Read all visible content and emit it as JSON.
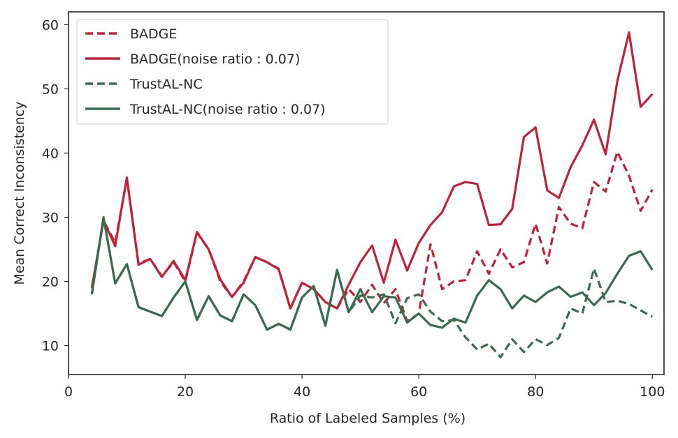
{
  "chart_data": {
    "type": "line",
    "title": "",
    "xlabel": "Ratio of Labeled Samples (%)",
    "ylabel": "Mean Correct Inconsistency",
    "xlim": [
      0,
      102
    ],
    "ylim": [
      5.5,
      62
    ],
    "xticks": [
      0,
      20,
      40,
      60,
      80,
      100
    ],
    "yticks": [
      10,
      20,
      30,
      40,
      50,
      60
    ],
    "grid": false,
    "legend_position": "top-left",
    "series": [
      {
        "name": "BADGE",
        "color": "#c0223a",
        "style": "dashed",
        "points": [
          [
            4,
            19
          ],
          [
            6,
            29.5
          ],
          [
            8,
            26
          ],
          [
            10,
            36
          ],
          [
            12,
            22.8
          ],
          [
            14,
            23.5
          ],
          [
            16,
            20.8
          ],
          [
            18,
            23
          ],
          [
            20,
            20
          ],
          [
            22,
            27.6
          ],
          [
            24,
            25
          ],
          [
            26,
            20
          ],
          [
            28,
            17.6
          ],
          [
            30,
            20
          ],
          [
            32,
            23.8
          ],
          [
            34,
            23
          ],
          [
            36,
            22
          ],
          [
            38,
            15.8
          ],
          [
            40,
            19.8
          ],
          [
            42,
            18.8
          ],
          [
            44,
            16.8
          ],
          [
            46,
            15.8
          ],
          [
            48,
            18.8
          ],
          [
            50,
            16.8
          ],
          [
            52,
            19.5
          ],
          [
            54,
            16.6
          ],
          [
            56,
            18.8
          ],
          [
            58,
            13.8
          ],
          [
            60,
            15
          ],
          [
            62,
            25.8
          ],
          [
            64,
            18.8
          ],
          [
            66,
            20
          ],
          [
            68,
            20.2
          ],
          [
            70,
            24.7
          ],
          [
            72,
            21.2
          ],
          [
            74,
            25
          ],
          [
            76,
            22.2
          ],
          [
            78,
            23
          ],
          [
            80,
            29
          ],
          [
            82,
            22.8
          ],
          [
            84,
            31.6
          ],
          [
            86,
            29
          ],
          [
            88,
            28.3
          ],
          [
            90,
            35.5
          ],
          [
            92,
            34
          ],
          [
            94,
            40.2
          ],
          [
            96,
            36.5
          ],
          [
            98,
            31
          ],
          [
            100,
            34.3
          ]
        ]
      },
      {
        "name": "BADGE(noise ratio : 0.07)",
        "color": "#c0223a",
        "style": "solid",
        "points": [
          [
            4,
            19
          ],
          [
            6,
            29.5
          ],
          [
            8,
            25.5
          ],
          [
            10,
            36.2
          ],
          [
            12,
            22.6
          ],
          [
            14,
            23.5
          ],
          [
            16,
            20.7
          ],
          [
            18,
            23.2
          ],
          [
            20,
            20.2
          ],
          [
            22,
            27.7
          ],
          [
            24,
            25
          ],
          [
            26,
            20.3
          ],
          [
            28,
            17.6
          ],
          [
            30,
            19.8
          ],
          [
            32,
            23.8
          ],
          [
            34,
            23
          ],
          [
            36,
            21.9
          ],
          [
            38,
            15.8
          ],
          [
            40,
            19.8
          ],
          [
            42,
            18.8
          ],
          [
            44,
            16.8
          ],
          [
            46,
            15.8
          ],
          [
            48,
            19.5
          ],
          [
            50,
            23
          ],
          [
            52,
            25.6
          ],
          [
            54,
            19.8
          ],
          [
            56,
            26.5
          ],
          [
            58,
            21.7
          ],
          [
            60,
            26
          ],
          [
            62,
            28.8
          ],
          [
            64,
            30.8
          ],
          [
            66,
            34.8
          ],
          [
            68,
            35.5
          ],
          [
            70,
            35.2
          ],
          [
            72,
            28.8
          ],
          [
            74,
            28.9
          ],
          [
            76,
            31.3
          ],
          [
            78,
            42.5
          ],
          [
            80,
            44
          ],
          [
            82,
            34.2
          ],
          [
            84,
            33
          ],
          [
            86,
            37.8
          ],
          [
            88,
            41.2
          ],
          [
            90,
            45.2
          ],
          [
            92,
            39.8
          ],
          [
            94,
            51.2
          ],
          [
            96,
            58.8
          ],
          [
            98,
            47.2
          ],
          [
            100,
            49.2
          ]
        ]
      },
      {
        "name": "TrustAL-NC",
        "color": "#3a6b50",
        "style": "dashed",
        "points": [
          [
            4,
            18
          ],
          [
            6,
            30
          ],
          [
            8,
            19.7
          ],
          [
            10,
            22.7
          ],
          [
            12,
            16
          ],
          [
            14,
            15.3
          ],
          [
            16,
            14.6
          ],
          [
            18,
            17.5
          ],
          [
            20,
            20
          ],
          [
            22,
            14
          ],
          [
            24,
            17.7
          ],
          [
            26,
            14.7
          ],
          [
            28,
            13.8
          ],
          [
            30,
            18
          ],
          [
            32,
            16.3
          ],
          [
            34,
            12.5
          ],
          [
            36,
            13.4
          ],
          [
            38,
            12.5
          ],
          [
            40,
            17.5
          ],
          [
            42,
            19.3
          ],
          [
            44,
            13.1
          ],
          [
            46,
            21.8
          ],
          [
            48,
            15.2
          ],
          [
            50,
            17.8
          ],
          [
            52,
            17.5
          ],
          [
            54,
            18
          ],
          [
            56,
            13.5
          ],
          [
            58,
            17.4
          ],
          [
            60,
            18
          ],
          [
            62,
            15.3
          ],
          [
            64,
            13.8
          ],
          [
            66,
            14
          ],
          [
            68,
            11.3
          ],
          [
            70,
            9.4
          ],
          [
            72,
            10.3
          ],
          [
            74,
            8.2
          ],
          [
            76,
            11
          ],
          [
            78,
            9
          ],
          [
            80,
            11
          ],
          [
            82,
            10.1
          ],
          [
            84,
            11.2
          ],
          [
            86,
            15.8
          ],
          [
            88,
            15
          ],
          [
            90,
            22
          ],
          [
            92,
            16.8
          ],
          [
            94,
            17
          ],
          [
            96,
            16.5
          ],
          [
            98,
            15.5
          ],
          [
            100,
            14.5
          ]
        ]
      },
      {
        "name": "TrustAL-NC(noise ratio : 0.07)",
        "color": "#3a6b50",
        "style": "solid",
        "points": [
          [
            4,
            18
          ],
          [
            6,
            30
          ],
          [
            8,
            19.7
          ],
          [
            10,
            22.7
          ],
          [
            12,
            16
          ],
          [
            14,
            15.3
          ],
          [
            16,
            14.6
          ],
          [
            18,
            17.5
          ],
          [
            20,
            20
          ],
          [
            22,
            14
          ],
          [
            24,
            17.7
          ],
          [
            26,
            14.7
          ],
          [
            28,
            13.8
          ],
          [
            30,
            18
          ],
          [
            32,
            16.3
          ],
          [
            34,
            12.5
          ],
          [
            36,
            13.4
          ],
          [
            38,
            12.5
          ],
          [
            40,
            17.5
          ],
          [
            42,
            19.3
          ],
          [
            44,
            13.1
          ],
          [
            46,
            21.8
          ],
          [
            48,
            15.2
          ],
          [
            50,
            18.8
          ],
          [
            52,
            15.2
          ],
          [
            54,
            17.7
          ],
          [
            56,
            17.5
          ],
          [
            58,
            13.6
          ],
          [
            60,
            15
          ],
          [
            62,
            13.2
          ],
          [
            64,
            12.8
          ],
          [
            66,
            14.2
          ],
          [
            68,
            13.6
          ],
          [
            70,
            17.8
          ],
          [
            72,
            20.2
          ],
          [
            74,
            18.8
          ],
          [
            76,
            15.8
          ],
          [
            78,
            17.8
          ],
          [
            80,
            16.8
          ],
          [
            82,
            18.3
          ],
          [
            84,
            19.2
          ],
          [
            86,
            17.6
          ],
          [
            88,
            18.3
          ],
          [
            90,
            16.3
          ],
          [
            92,
            18.2
          ],
          [
            94,
            21.2
          ],
          [
            96,
            24
          ],
          [
            98,
            24.7
          ],
          [
            100,
            21.8
          ]
        ]
      }
    ]
  }
}
